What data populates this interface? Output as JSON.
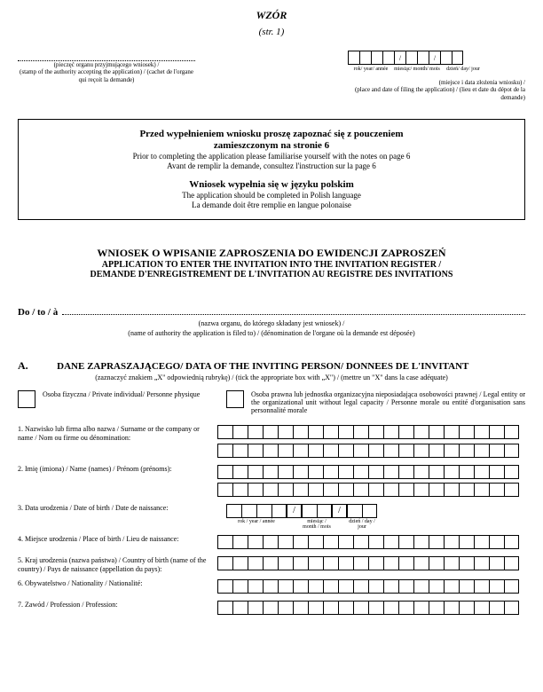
{
  "header": {
    "title": "WZÓR",
    "page": "(str. 1)"
  },
  "stamp": {
    "caption": "(pieczęć organu przyjmującego wniosek) /\n(stamp of the authority accepting the application) / (cachet de l'organe qui reçoit la demande)"
  },
  "date_filing": {
    "slash": "/",
    "label_year": "rok/ year/ année",
    "label_month": "miesiąc/ month/ mois",
    "label_day": "dzień/ day/ jour",
    "caption": "(miejsce i data złożenia wniosku) /\n(place and date of filing the application) / (lieu et date du dépot de la demande)"
  },
  "notice": {
    "line1_pl": "Przed wypełnieniem wniosku proszę zapoznać się z pouczeniem",
    "line2_pl": "zamieszczonym na stronie 6",
    "line3_en": "Prior to completing the application please familiarise yourself with the notes on page 6",
    "line4_fr": "Avant de remplir la demande, consultez l'instruction sur la page 6",
    "line5_pl": "Wniosek wypełnia się w języku polskim",
    "line6_en": "The application should be completed in Polish language",
    "line7_fr": "La demande doit être remplie en langue polonaise"
  },
  "main_title": {
    "pl": "WNIOSEK O WPISANIE ZAPROSZENIA DO EWIDENCJI ZAPROSZEŃ",
    "en": "APPLICATION TO ENTER THE INVITATION INTO THE INVITATION REGISTER /",
    "fr": "DEMANDE D'ENREGISTREMENT DE L'INVITATION AU REGISTRE DES INVITATIONS"
  },
  "do": {
    "label": "Do / to / à",
    "caption1": "(nazwa organu, do którego składany jest wniosek) /",
    "caption2": "(name of authority the application is filed to) / (dénomination de l'organe où la demande est déposée)"
  },
  "section_a": {
    "letter": "A.",
    "title": "DANE ZAPRASZAJĄCEGO/ DATA OF THE INVITING PERSON/ DONNEES DE L'INVITANT",
    "sub": "(zaznaczyć znakiem „X\" odpowiednią rubrykę) / (tick the appropriate box with „X\") / (mettre un \"X\" dans la case adéquate)",
    "check_private": "Osoba fizyczna / Private individual/ Personne physique",
    "check_legal": "Osoba prawna lub jednostka organizacyjna nieposiadająca osobowości prawnej / Legal entity or the organizational unit without legal capacity / Personne morale ou entité d'organisation sans personnalité morale",
    "field1": "1. Nazwisko lub firma albo nazwa / Surname or the company or name / Nom ou firme ou dénomination:",
    "field2": "2. Imię (imiona) / Name (names) / Prénom (prénoms):",
    "field3": "3. Data urodzenia / Date of birth / Date de naissance:",
    "dob_year": "rok / year / année",
    "dob_month": "miesiąc / month / mois",
    "dob_day": "dzień / day / jour",
    "field4": "4. Miejsce urodzenia / Place of birth / Lieu de naissance:",
    "field5": "5. Kraj urodzenia (nazwa państwa) / Country of birth (name of the country) / Pays de naissance (appellation du pays):",
    "field6": "6. Obywatelstwo / Nationality / Nationalité:",
    "field7": "7. Zawód / Profession / Profession:"
  }
}
